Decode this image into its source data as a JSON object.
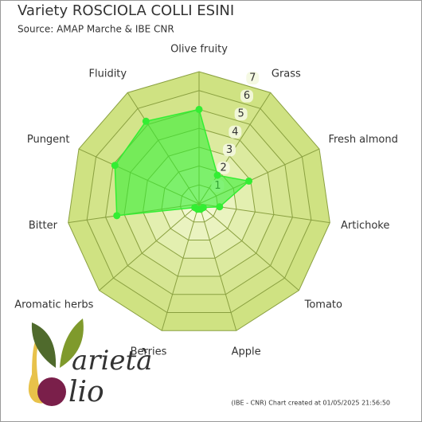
{
  "chart_data": {
    "type": "radar",
    "title": "Variety ROSCIOLA COLLI ESINI",
    "subtitle": "Source: AMAP Marche & IBE CNR",
    "categories": [
      "Olive fruity",
      "Grass",
      "Fresh almond",
      "Artichoke",
      "Tomato",
      "Apple",
      "Berries",
      "Aromatic herbs",
      "Bitter",
      "Pungent",
      "Fluidity"
    ],
    "series": [
      {
        "color": "#33ee33",
        "values": [
          5.0,
          1.8,
          2.9,
          1.1,
          0.3,
          0.3,
          0.3,
          0.3,
          4.4,
          4.9,
          5.2
        ]
      }
    ],
    "rlim": [
      0,
      7
    ],
    "rticks": [
      1,
      2,
      3,
      4,
      5,
      6,
      7
    ],
    "grid": true
  },
  "logo": {
    "word1": "arietà",
    "word2": "lio"
  },
  "footer": "(IBE - CNR) Chart created at 01/05/2025 21:56:50"
}
